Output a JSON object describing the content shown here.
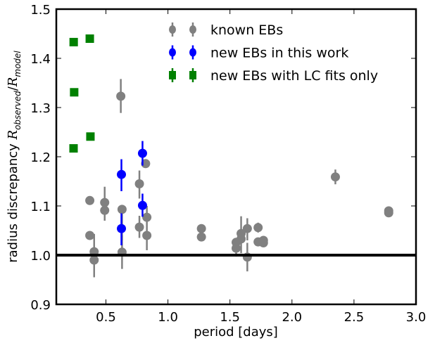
{
  "chart_data": {
    "type": "scatter",
    "title": "",
    "xlabel": "period [days]",
    "ylabel": {
      "text": "radius discrepancy",
      "num": "R",
      "num_sub": "observed",
      "slash": "/",
      "den": "R",
      "den_sub": "model"
    },
    "xlim": [
      0.1,
      3.0
    ],
    "ylim": [
      0.9,
      1.5
    ],
    "xticks": [
      "0.5",
      "1.0",
      "1.5",
      "2.0",
      "2.5",
      "3.0"
    ],
    "yticks": [
      "0.9",
      "1.0",
      "1.1",
      "1.2",
      "1.3",
      "1.4",
      "1.5"
    ],
    "grid": false,
    "reference_line": {
      "y": 1.0,
      "color": "#000000"
    },
    "legend": {
      "placement": "top-center"
    },
    "series": [
      {
        "name": "known EBs",
        "marker": "circle",
        "color": "#808080",
        "points": [
          {
            "x": 0.62,
            "y": 1.323,
            "ylo": 1.289,
            "yhi": 1.358
          },
          {
            "x": 0.82,
            "y": 1.186,
            "ylo": 1.178,
            "yhi": 1.194
          },
          {
            "x": 0.77,
            "y": 1.145,
            "ylo": 1.115,
            "yhi": 1.172
          },
          {
            "x": 0.37,
            "y": 1.111,
            "ylo": 1.106,
            "yhi": 1.116
          },
          {
            "x": 0.49,
            "y": 1.107,
            "ylo": 1.07,
            "yhi": 1.139
          },
          {
            "x": 0.49,
            "y": 1.091,
            "ylo": 1.085,
            "yhi": 1.097
          },
          {
            "x": 0.63,
            "y": 1.093,
            "ylo": 1.03,
            "yhi": 1.098
          },
          {
            "x": 0.77,
            "y": 1.057,
            "ylo": 1.035,
            "yhi": 1.08
          },
          {
            "x": 0.83,
            "y": 1.077,
            "ylo": 1.04,
            "yhi": 1.1
          },
          {
            "x": 0.83,
            "y": 1.04,
            "ylo": 1.01,
            "yhi": 1.045
          },
          {
            "x": 0.37,
            "y": 1.04,
            "ylo": 1.035,
            "yhi": 1.045
          },
          {
            "x": 0.405,
            "y": 1.007,
            "ylo": 1.0,
            "yhi": 1.043
          },
          {
            "x": 0.405,
            "y": 0.99,
            "ylo": 0.955,
            "yhi": 0.995
          },
          {
            "x": 0.63,
            "y": 1.006,
            "ylo": 0.972,
            "yhi": 1.04
          },
          {
            "x": 1.27,
            "y": 1.054,
            "ylo": 1.049,
            "yhi": 1.059
          },
          {
            "x": 1.27,
            "y": 1.037,
            "ylo": 1.032,
            "yhi": 1.042
          },
          {
            "x": 1.59,
            "y": 1.044,
            "ylo": 1.004,
            "yhi": 1.079
          },
          {
            "x": 1.64,
            "y": 1.054,
            "ylo": 1.03,
            "yhi": 1.075
          },
          {
            "x": 1.727,
            "y": 1.056,
            "ylo": 1.046,
            "yhi": 1.066
          },
          {
            "x": 1.59,
            "y": 1.033,
            "ylo": 1.028,
            "yhi": 1.038
          },
          {
            "x": 1.55,
            "y": 1.026,
            "ylo": 1.021,
            "yhi": 1.031
          },
          {
            "x": 1.55,
            "y": 1.014,
            "ylo": 0.997,
            "yhi": 1.019
          },
          {
            "x": 1.64,
            "y": 0.996,
            "ylo": 0.967,
            "yhi": 1.025
          },
          {
            "x": 1.727,
            "y": 1.027,
            "ylo": 1.022,
            "yhi": 1.032
          },
          {
            "x": 1.77,
            "y": 1.03,
            "ylo": 1.025,
            "yhi": 1.035
          },
          {
            "x": 1.77,
            "y": 1.025,
            "ylo": 1.02,
            "yhi": 1.03
          },
          {
            "x": 2.35,
            "y": 1.159,
            "ylo": 1.144,
            "yhi": 1.174
          },
          {
            "x": 2.78,
            "y": 1.086,
            "ylo": 1.081,
            "yhi": 1.097
          },
          {
            "x": 2.78,
            "y": 1.09,
            "ylo": 1.085,
            "yhi": 1.095
          }
        ]
      },
      {
        "name": "new EBs in this work",
        "marker": "circle",
        "color": "#0000ff",
        "points": [
          {
            "x": 0.795,
            "y": 1.207,
            "ylo": 1.182,
            "yhi": 1.232
          },
          {
            "x": 0.625,
            "y": 1.164,
            "ylo": 1.13,
            "yhi": 1.195
          },
          {
            "x": 0.795,
            "y": 1.101,
            "ylo": 1.078,
            "yhi": 1.125
          },
          {
            "x": 0.625,
            "y": 1.054,
            "ylo": 1.02,
            "yhi": 1.085
          }
        ]
      },
      {
        "name": "new EBs with LC fits only",
        "marker": "square",
        "color": "#008000",
        "points": [
          {
            "x": 0.24,
            "y": 1.433
          },
          {
            "x": 0.37,
            "y": 1.44
          },
          {
            "x": 0.244,
            "y": 1.331
          },
          {
            "x": 0.375,
            "y": 1.241
          },
          {
            "x": 0.239,
            "y": 1.217
          }
        ]
      }
    ]
  }
}
